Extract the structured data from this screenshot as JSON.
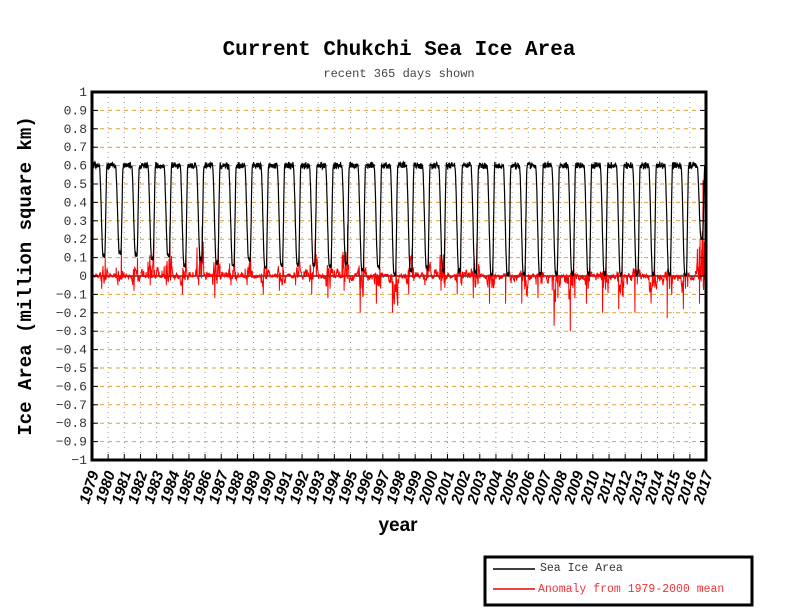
{
  "chart_data": {
    "type": "line",
    "title": "Current Chukchi Sea Ice Area",
    "subtitle": "recent 365 days shown",
    "xlabel": "year",
    "ylabel": "Ice Area (million square km)",
    "xlim": [
      1979,
      2017
    ],
    "ylim": [
      -1,
      1
    ],
    "x_ticks": [
      1979,
      1980,
      1981,
      1982,
      1983,
      1984,
      1985,
      1986,
      1987,
      1988,
      1989,
      1990,
      1991,
      1992,
      1993,
      1994,
      1995,
      1996,
      1997,
      1998,
      1999,
      2000,
      2001,
      2002,
      2003,
      2004,
      2005,
      2006,
      2007,
      2008,
      2009,
      2010,
      2011,
      2012,
      2013,
      2014,
      2015,
      2016,
      2017
    ],
    "y_ticks": [
      "1",
      "0.9",
      "0.8",
      "0.7",
      "0.6",
      "0.5",
      "0.4",
      "0.3",
      "0.2",
      "0.1",
      "0",
      "-0.1",
      "-0.2",
      "-0.3",
      "-0.4",
      "-0.5",
      "-0.6",
      "-0.7",
      "-0.8",
      "-0.9",
      "-1"
    ],
    "grid": true,
    "legend_position": "bottom-right",
    "data_end": 2016.95,
    "years": [
      1979,
      1980,
      1981,
      1982,
      1983,
      1984,
      1985,
      1986,
      1987,
      1988,
      1989,
      1990,
      1991,
      1992,
      1993,
      1994,
      1995,
      1996,
      1997,
      1998,
      1999,
      2000,
      2001,
      2002,
      2003,
      2004,
      2005,
      2006,
      2007,
      2008,
      2009,
      2010,
      2011,
      2012,
      2013,
      2014,
      2015,
      2016
    ],
    "series": [
      {
        "name": "Sea Ice Area",
        "color": "#000000",
        "annual_max": 0.6,
        "annual_min": [
          0.1,
          0.12,
          0.1,
          0.08,
          0.1,
          0.05,
          0.08,
          0.06,
          0.05,
          0.08,
          0.04,
          0.05,
          0.06,
          0.05,
          0.04,
          0.06,
          0.03,
          0.04,
          0.0,
          0.02,
          0.03,
          0.02,
          0.02,
          0.01,
          0.0,
          0.0,
          0.0,
          0.0,
          0.0,
          0.0,
          0.0,
          0.0,
          0.0,
          0.0,
          0.0,
          0.0,
          0.0,
          0.2
        ]
      },
      {
        "name": "Anomaly from 1979-2000 mean",
        "color": "#ff0000",
        "annual_max": [
          0.1,
          0.15,
          0.1,
          0.2,
          0.27,
          0.12,
          0.27,
          0.15,
          0.2,
          0.12,
          0.1,
          0.08,
          0.15,
          0.2,
          0.1,
          0.28,
          0.1,
          0.05,
          0.05,
          0.15,
          0.12,
          0.2,
          0.07,
          0.18,
          0.05,
          0.03,
          0.05,
          0.05,
          0.02,
          0.04,
          0.05,
          0.07,
          0.05,
          0.1,
          0.08,
          0.05,
          0.03,
          0.52
        ],
        "annual_min": [
          -0.07,
          -0.05,
          -0.08,
          -0.05,
          -0.05,
          -0.1,
          -0.05,
          -0.12,
          -0.05,
          -0.05,
          -0.1,
          -0.08,
          -0.05,
          -0.1,
          -0.12,
          -0.08,
          -0.2,
          -0.15,
          -0.2,
          -0.1,
          -0.05,
          -0.08,
          -0.1,
          -0.12,
          -0.15,
          -0.15,
          -0.15,
          -0.12,
          -0.27,
          -0.3,
          -0.15,
          -0.2,
          -0.18,
          -0.2,
          -0.15,
          -0.23,
          -0.18,
          -0.15
        ]
      }
    ]
  }
}
